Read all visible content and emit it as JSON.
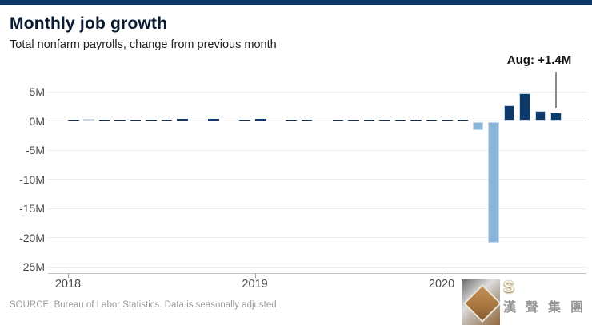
{
  "header": {
    "title": "Monthly job growth",
    "subtitle": "Total nonfarm payrolls, change from previous month"
  },
  "source_note": "SOURCE: Bureau of Labor Statistics. Data is seasonally adjusted.",
  "watermark": {
    "letter": "S",
    "cjk": "漢聲集團"
  },
  "colors": {
    "topbar": "#0d3866",
    "bar_positive": "#0b3a6b",
    "bar_negative": "#8ab6da",
    "title": "#0a1a33",
    "subtitle": "#1f1f1f",
    "axis_label": "#4a4a4a",
    "gridline": "#ededed",
    "zero_line": "#8a8a8a",
    "annotation_line": "#8c8c8c",
    "source": "#9b9b9b"
  },
  "chart_data": {
    "type": "bar",
    "title": "Monthly job growth",
    "subtitle": "Total nonfarm payrolls, change from previous month",
    "unit": "millions of jobs",
    "x": [
      "2018-01",
      "2018-02",
      "2018-03",
      "2018-04",
      "2018-05",
      "2018-06",
      "2018-07",
      "2018-08",
      "2018-09",
      "2018-10",
      "2018-11",
      "2018-12",
      "2019-01",
      "2019-02",
      "2019-03",
      "2019-04",
      "2019-05",
      "2019-06",
      "2019-07",
      "2019-08",
      "2019-09",
      "2019-10",
      "2019-11",
      "2019-12",
      "2020-01",
      "2020-02",
      "2020-03",
      "2020-04",
      "2020-05",
      "2020-06",
      "2020-07",
      "2020-08"
    ],
    "values": [
      0.18,
      0.38,
      0.18,
      0.18,
      0.27,
      0.25,
      0.18,
      0.28,
      0.11,
      0.28,
      0.12,
      0.23,
      0.31,
      0.02,
      0.15,
      0.21,
      0.08,
      0.18,
      0.17,
      0.21,
      0.21,
      0.19,
      0.26,
      0.18,
      0.21,
      0.25,
      -1.37,
      -20.79,
      2.73,
      4.78,
      1.76,
      1.37
    ],
    "ytick_values": [
      5,
      0,
      -5,
      -10,
      -15,
      -20,
      -25
    ],
    "ytick_labels": [
      "5M",
      "0M",
      "-5M",
      "-10M",
      "-15M",
      "-20M",
      "-25M"
    ],
    "xtick_labels": [
      "2018",
      "2019",
      "2020"
    ],
    "xtick_month_index": [
      0,
      12,
      24
    ],
    "ylim": [
      -25.5,
      5.5
    ],
    "grid": true,
    "legend": false,
    "annotation": {
      "text": "Aug: +1.4M",
      "target_month": "2020-08",
      "target_value": 1.37
    }
  }
}
